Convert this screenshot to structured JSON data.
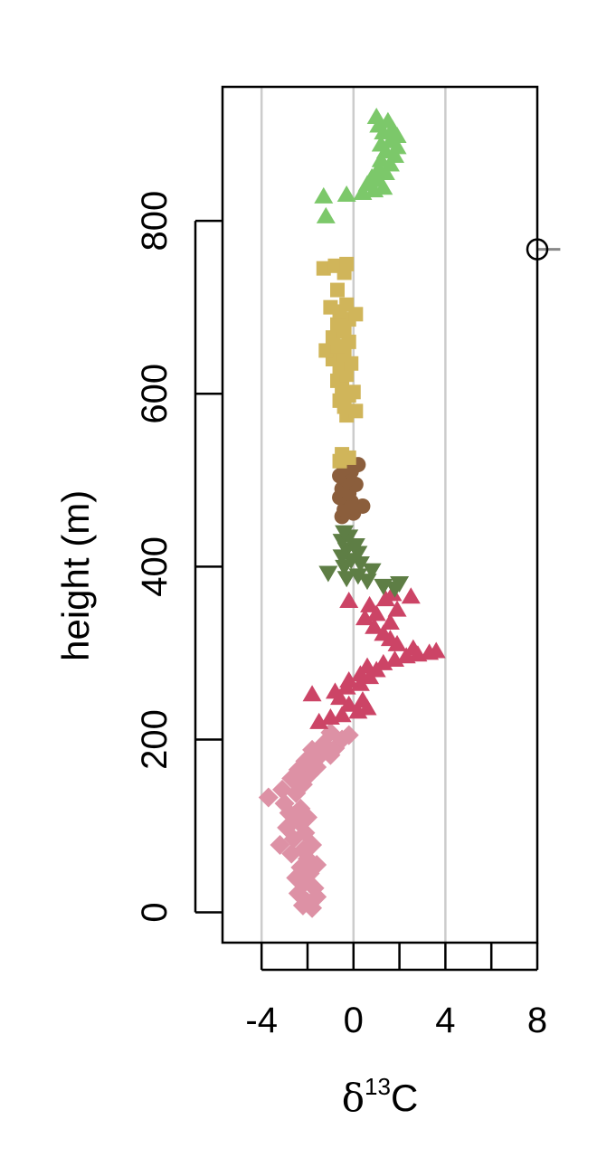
{
  "chart_data": {
    "type": "scatter",
    "xlabel": "δ",
    "xlabel_superscript": "13",
    "xlabel_suffix": "C",
    "ylabel": "height (m)",
    "xlim": [
      -5.7,
      8
    ],
    "ylim": [
      -35,
      955
    ],
    "x_ticks": [
      -4,
      -2,
      0,
      2,
      4,
      6,
      8
    ],
    "x_tick_labels": [
      {
        "value": -4,
        "label": "-4"
      },
      {
        "value": 0,
        "label": "0"
      },
      {
        "value": 4,
        "label": "4"
      },
      {
        "value": 8,
        "label": "8"
      }
    ],
    "y_ticks": [
      0,
      200,
      400,
      600,
      800
    ],
    "y_tick_labels": [
      "0",
      "200",
      "400",
      "600",
      "800"
    ],
    "grid_x": [
      -4,
      0,
      4
    ],
    "grid_color": "#cccccc",
    "marker": {
      "x": 8,
      "y": 767,
      "err_plus": 1,
      "color": "#000000",
      "err_color": "#888888"
    },
    "series": [
      {
        "shape": "diamond",
        "color": "#dd91a5",
        "points": [
          [
            -1.8,
            5
          ],
          [
            -2.2,
            8
          ],
          [
            -2.0,
            12
          ],
          [
            -1.6,
            18
          ],
          [
            -2.4,
            22
          ],
          [
            -1.7,
            28
          ],
          [
            -2.1,
            35
          ],
          [
            -2.5,
            40
          ],
          [
            -1.9,
            45
          ],
          [
            -2.3,
            52
          ],
          [
            -1.6,
            55
          ],
          [
            -2.0,
            62
          ],
          [
            -2.7,
            68
          ],
          [
            -2.2,
            72
          ],
          [
            -1.8,
            78
          ],
          [
            -3.2,
            78
          ],
          [
            -2.6,
            85
          ],
          [
            -2.1,
            92
          ],
          [
            -2.9,
            98
          ],
          [
            -2.4,
            105
          ],
          [
            -2.0,
            110
          ],
          [
            -2.8,
            115
          ],
          [
            -2.3,
            120
          ],
          [
            -3.0,
            126
          ],
          [
            -3.7,
            133
          ],
          [
            -2.5,
            138
          ],
          [
            -3.1,
            142
          ],
          [
            -2.2,
            148
          ],
          [
            -2.7,
            155
          ],
          [
            -1.9,
            160
          ],
          [
            -2.4,
            165
          ],
          [
            -1.6,
            168
          ],
          [
            -2.1,
            175
          ],
          [
            -1.5,
            180
          ],
          [
            -1.0,
            182
          ],
          [
            -1.8,
            188
          ],
          [
            -0.8,
            190
          ],
          [
            -1.3,
            195
          ],
          [
            -0.5,
            200
          ],
          [
            -0.2,
            205
          ],
          [
            -1.0,
            208
          ]
        ]
      },
      {
        "shape": "triangle-up",
        "color": "#cc4466",
        "points": [
          [
            -1.5,
            220
          ],
          [
            -1.0,
            225
          ],
          [
            -0.5,
            228
          ],
          [
            0.2,
            232
          ],
          [
            0.6,
            236
          ],
          [
            -0.2,
            240
          ],
          [
            0.4,
            245
          ],
          [
            -0.6,
            248
          ],
          [
            -1.8,
            252
          ],
          [
            -0.8,
            255
          ],
          [
            -0.3,
            260
          ],
          [
            0.3,
            264
          ],
          [
            -0.2,
            268
          ],
          [
            0.7,
            272
          ],
          [
            0.3,
            275
          ],
          [
            1.0,
            280
          ],
          [
            0.6,
            284
          ],
          [
            1.3,
            288
          ],
          [
            1.8,
            292
          ],
          [
            2.3,
            296
          ],
          [
            2.8,
            298
          ],
          [
            3.3,
            300
          ],
          [
            3.6,
            302
          ],
          [
            2.6,
            305
          ],
          [
            1.9,
            310
          ],
          [
            1.6,
            316
          ],
          [
            1.3,
            322
          ],
          [
            0.9,
            330
          ],
          [
            1.6,
            335
          ],
          [
            0.5,
            340
          ],
          [
            1.0,
            345
          ],
          [
            1.9,
            350
          ],
          [
            0.7,
            355
          ],
          [
            -0.2,
            360
          ],
          [
            1.4,
            362
          ],
          [
            2.5,
            365
          ],
          [
            1.7,
            368
          ]
        ]
      },
      {
        "shape": "triangle-down",
        "color": "#5e7e45",
        "points": [
          [
            1.8,
            375
          ],
          [
            1.3,
            378
          ],
          [
            2.0,
            381
          ],
          [
            0.6,
            384
          ],
          [
            -0.3,
            387
          ],
          [
            0.2,
            390
          ],
          [
            -1.1,
            393
          ],
          [
            0.8,
            396
          ],
          [
            -0.4,
            400
          ],
          [
            0.3,
            404
          ],
          [
            -0.1,
            408
          ],
          [
            -0.5,
            412
          ],
          [
            0.2,
            416
          ],
          [
            -0.3,
            420
          ],
          [
            0.1,
            425
          ],
          [
            -0.5,
            430
          ],
          [
            -0.2,
            435
          ],
          [
            -0.4,
            440
          ]
        ]
      },
      {
        "shape": "circle",
        "color": "#8b5e3c",
        "points": [
          [
            -0.5,
            458
          ],
          [
            0.0,
            462
          ],
          [
            -0.4,
            466
          ],
          [
            0.4,
            470
          ],
          [
            -0.1,
            475
          ],
          [
            -0.6,
            480
          ],
          [
            -0.2,
            485
          ],
          [
            -0.5,
            490
          ],
          [
            0.1,
            495
          ],
          [
            -0.3,
            500
          ],
          [
            -0.6,
            505
          ],
          [
            -0.1,
            510
          ],
          [
            -0.4,
            514
          ],
          [
            0.2,
            518
          ]
        ]
      },
      {
        "shape": "square",
        "color": "#d0b55a",
        "points": [
          [
            -0.6,
            522
          ],
          [
            -0.2,
            526
          ],
          [
            -0.5,
            530
          ],
          [
            -0.3,
            575
          ],
          [
            0.1,
            580
          ],
          [
            -0.4,
            585
          ],
          [
            -0.6,
            592
          ],
          [
            -0.2,
            598
          ],
          [
            0.0,
            602
          ],
          [
            -0.5,
            608
          ],
          [
            -0.7,
            615
          ],
          [
            -0.3,
            622
          ],
          [
            -0.6,
            630
          ],
          [
            -0.1,
            635
          ],
          [
            -0.9,
            640
          ],
          [
            -0.4,
            645
          ],
          [
            -1.2,
            650
          ],
          [
            -0.7,
            655
          ],
          [
            -0.2,
            660
          ],
          [
            -0.9,
            665
          ],
          [
            -0.4,
            672
          ],
          [
            -0.7,
            680
          ],
          [
            -0.2,
            686
          ],
          [
            0.1,
            692
          ],
          [
            -0.6,
            695
          ],
          [
            -1.0,
            700
          ],
          [
            -0.3,
            703
          ],
          [
            -0.7,
            720
          ],
          [
            -0.4,
            740
          ],
          [
            -1.3,
            745
          ],
          [
            -0.8,
            748
          ],
          [
            -0.3,
            750
          ]
        ]
      },
      {
        "shape": "triangle-up",
        "color": "#7cc86a",
        "points": [
          [
            -1.2,
            805
          ],
          [
            -1.3,
            828
          ],
          [
            -0.3,
            830
          ],
          [
            0.4,
            832
          ],
          [
            0.9,
            835
          ],
          [
            1.3,
            838
          ],
          [
            0.6,
            842
          ],
          [
            1.1,
            847
          ],
          [
            0.8,
            850
          ],
          [
            1.4,
            855
          ],
          [
            1.1,
            860
          ],
          [
            1.6,
            865
          ],
          [
            1.2,
            870
          ],
          [
            1.8,
            875
          ],
          [
            1.4,
            880
          ],
          [
            1.9,
            885
          ],
          [
            1.2,
            888
          ],
          [
            1.6,
            892
          ],
          [
            1.9,
            898
          ],
          [
            1.3,
            902
          ],
          [
            1.7,
            906
          ],
          [
            1.1,
            910
          ],
          [
            1.5,
            915
          ],
          [
            1.0,
            920
          ]
        ]
      }
    ]
  }
}
